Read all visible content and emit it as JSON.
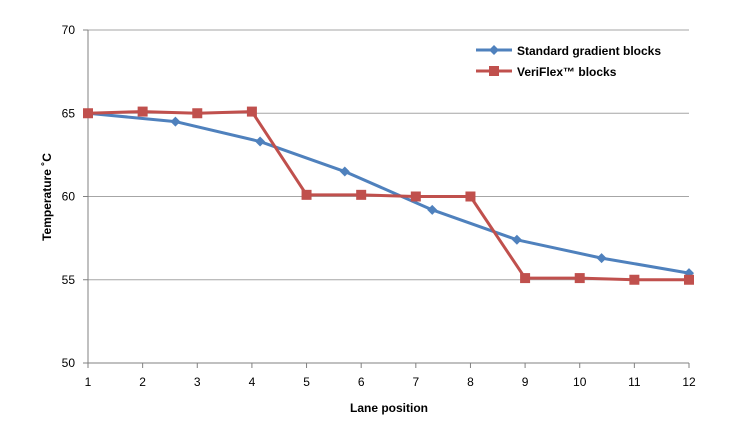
{
  "chart_data": {
    "type": "line",
    "title": "",
    "xlabel": "Lane position",
    "ylabel": "Temperature ˚C",
    "x_ticks": [
      "1",
      "2",
      "3",
      "4",
      "5",
      "6",
      "7",
      "8",
      "9",
      "10",
      "11",
      "12"
    ],
    "y_ticks": [
      "50",
      "55",
      "60",
      "65",
      "70"
    ],
    "xlim": [
      1,
      12
    ],
    "ylim": [
      50,
      70
    ],
    "grid": "horizontal",
    "legend_position": "top-right",
    "series": [
      {
        "name": "Standard gradient blocks",
        "color": "#4f81bd",
        "marker": "diamond",
        "x": [
          1,
          2.6,
          4.15,
          5.7,
          7.3,
          8.85,
          10.4,
          12
        ],
        "y": [
          65.0,
          64.5,
          63.3,
          61.5,
          59.2,
          57.4,
          56.3,
          55.4
        ]
      },
      {
        "name": "VeriFlex™ blocks",
        "color": "#c0504d",
        "marker": "square",
        "x": [
          1,
          2,
          3,
          4,
          5,
          6,
          7,
          8,
          9,
          10,
          11,
          12
        ],
        "y": [
          65.0,
          65.1,
          65.0,
          65.1,
          60.1,
          60.1,
          60.0,
          60.0,
          55.1,
          55.1,
          55.0,
          55.0
        ]
      }
    ]
  }
}
